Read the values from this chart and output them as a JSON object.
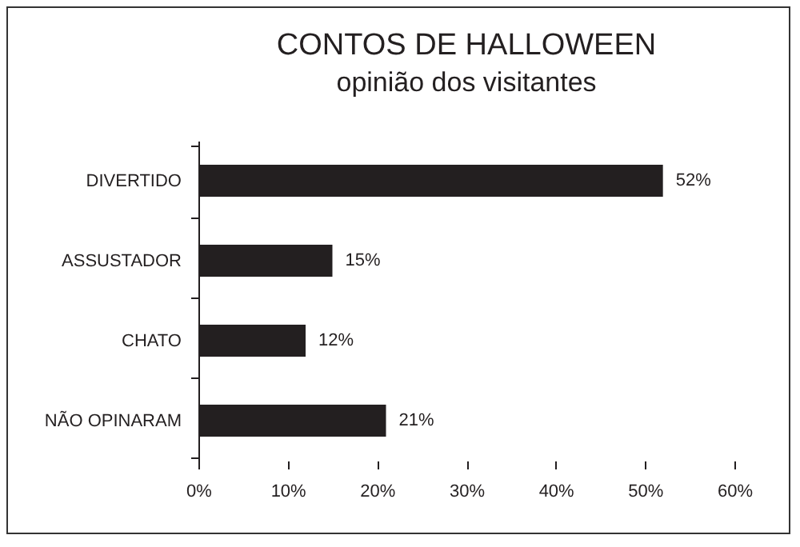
{
  "chart_data": {
    "type": "bar",
    "title": "CONTOS DE HALLOWEEN",
    "subtitle": "opinião dos visitantes",
    "orientation": "horizontal",
    "categories": [
      "DIVERTIDO",
      "ASSUSTADOR",
      "CHATO",
      "NÃO OPINARAM"
    ],
    "values": [
      52,
      15,
      12,
      21
    ],
    "color": "#231f20",
    "value_labels": [
      "52%",
      "15%",
      "12%",
      "21%"
    ],
    "xlim": [
      0,
      60
    ],
    "xticks": [
      {
        "value": 0,
        "label": "0%"
      },
      {
        "value": 10,
        "label": "10%"
      },
      {
        "value": 20,
        "label": "20%"
      },
      {
        "value": 30,
        "label": "30%"
      },
      {
        "value": 40,
        "label": "40%"
      },
      {
        "value": 50,
        "label": "50%"
      },
      {
        "value": 60,
        "label": "60%"
      }
    ],
    "grid": false
  }
}
